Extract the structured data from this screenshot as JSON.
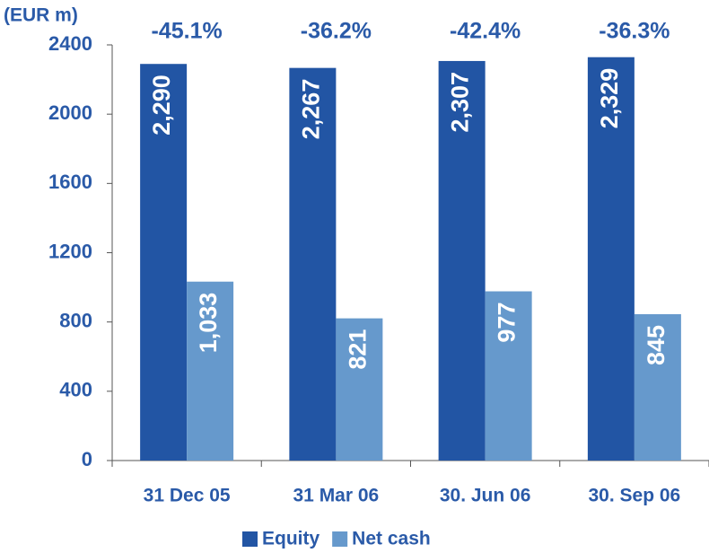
{
  "chart_data": {
    "type": "bar",
    "unit_label": "(EUR m)",
    "categories": [
      "31 Dec 05",
      "31 Mar 06",
      "30. Jun 06",
      "30. Sep 06"
    ],
    "annotations": [
      "-45.1%",
      "-36.2%",
      "-42.4%",
      "-36.3%"
    ],
    "series": [
      {
        "name": "Equity",
        "color": "#2255a4",
        "values": [
          2290,
          2267,
          2307,
          2329
        ],
        "value_labels": [
          "2,290",
          "2,267",
          "2,307",
          "2,329"
        ]
      },
      {
        "name": "Net cash",
        "color": "#6699cc",
        "values": [
          1033,
          821,
          977,
          845
        ],
        "value_labels": [
          "1,033",
          "821",
          "977",
          "845"
        ]
      }
    ],
    "ylim": [
      0,
      2400
    ],
    "yticks": [
      0,
      400,
      800,
      1200,
      1600,
      2000,
      2400
    ],
    "legend": "bottom"
  }
}
